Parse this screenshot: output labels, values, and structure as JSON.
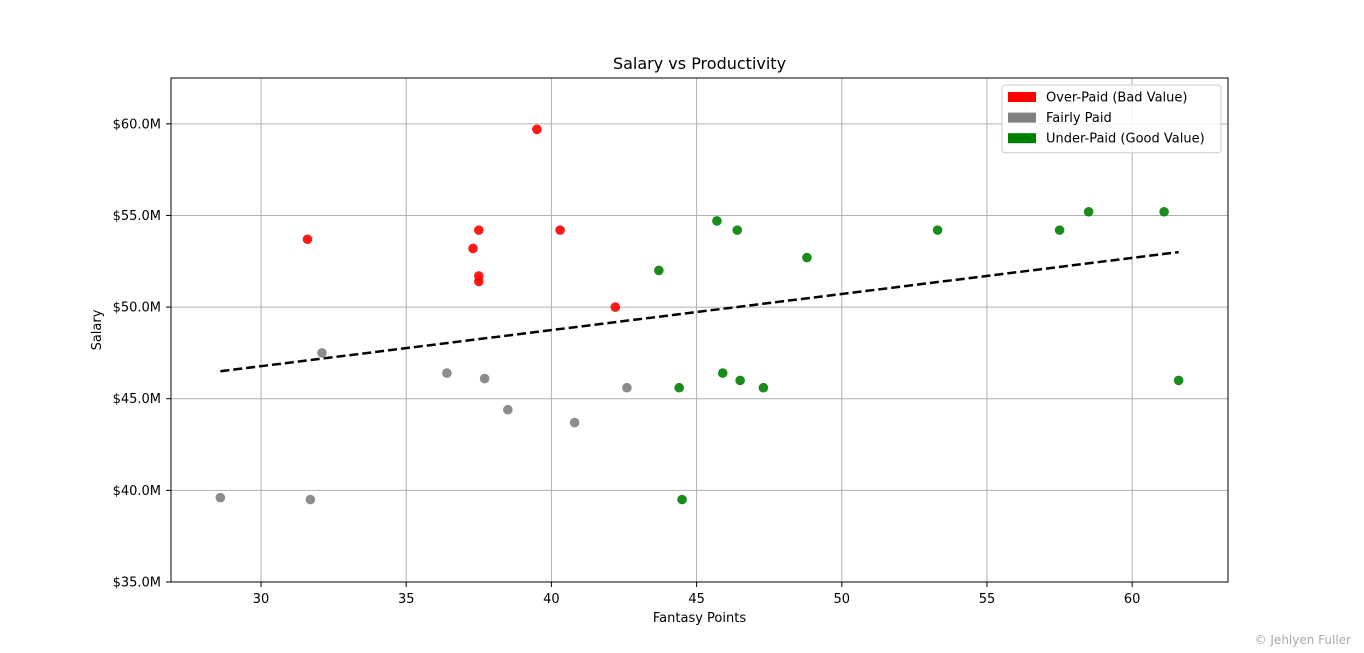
{
  "chart_data": {
    "type": "scatter",
    "title": "Salary vs Productivity",
    "xlabel": "Fantasy Points",
    "ylabel": "Salary",
    "xlim": [
      26.9,
      63.3
    ],
    "ylim": [
      35.0,
      62.5
    ],
    "x_ticks": [
      30,
      35,
      40,
      45,
      50,
      55,
      60
    ],
    "x_tick_labels": [
      "30",
      "35",
      "40",
      "45",
      "50",
      "55",
      "60"
    ],
    "y_ticks": [
      35,
      40,
      45,
      50,
      55,
      60
    ],
    "y_tick_labels": [
      "$35.0M",
      "$40.0M",
      "$45.0M",
      "$50.0M",
      "$55.0M",
      "$60.0M"
    ],
    "grid": true,
    "legend_position": "top-right",
    "series": [
      {
        "name": "Over-Paid (Bad Value)",
        "color": "#ff0000",
        "x": [
          31.6,
          37.3,
          37.5,
          37.5,
          37.5,
          39.5,
          40.3,
          42.2
        ],
        "y": [
          53.7,
          53.2,
          54.2,
          51.7,
          51.4,
          59.7,
          54.2,
          50.0
        ]
      },
      {
        "name": "Fairly Paid",
        "color": "#808080",
        "x": [
          28.6,
          31.7,
          32.1,
          36.4,
          37.7,
          38.5,
          40.8,
          42.6
        ],
        "y": [
          39.6,
          39.5,
          47.5,
          46.4,
          46.1,
          44.4,
          43.7,
          45.6
        ]
      },
      {
        "name": "Under-Paid (Good Value)",
        "color": "#008000",
        "x": [
          43.7,
          44.4,
          44.5,
          45.7,
          45.9,
          46.4,
          46.5,
          47.3,
          48.8,
          53.3,
          57.5,
          58.5,
          61.1,
          61.6
        ],
        "y": [
          52.0,
          45.6,
          39.5,
          54.7,
          46.4,
          54.2,
          46.0,
          45.6,
          52.7,
          54.2,
          54.2,
          55.2,
          55.2,
          46.0
        ]
      }
    ],
    "trendline": {
      "style": "dashed",
      "color": "#000000",
      "x": [
        28.6,
        61.6
      ],
      "y": [
        46.5,
        53.0
      ]
    }
  },
  "credit": "© Jehlyen Fuller"
}
